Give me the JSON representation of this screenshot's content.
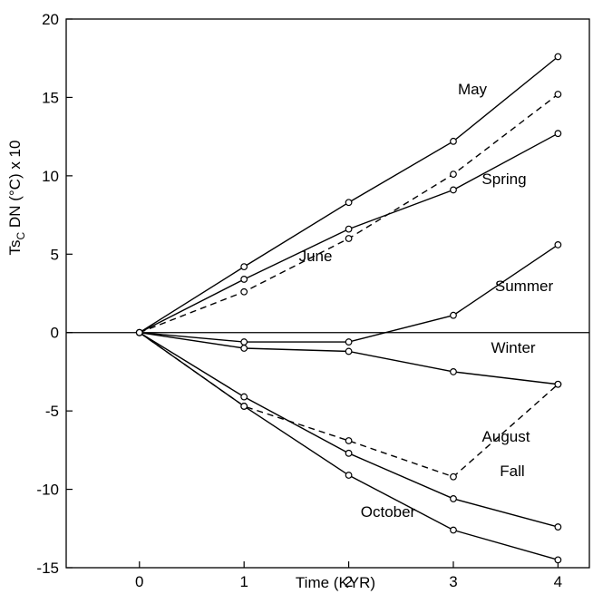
{
  "chart_data": {
    "type": "line",
    "title": "",
    "xlabel": "Time (KYR)",
    "ylabel_parts": {
      "base": "Ts",
      "sub": "C",
      "rest": " DN (°C) x 10"
    },
    "xlim": [
      -0.7,
      4.3
    ],
    "ylim": [
      -15,
      20
    ],
    "xticks": [
      0,
      1,
      2,
      3,
      4
    ],
    "yticks": [
      -15,
      -10,
      -5,
      0,
      5,
      10,
      15,
      20
    ],
    "zero_line": true,
    "grid": false,
    "legend": "none",
    "x": [
      0,
      1,
      2,
      3,
      4
    ],
    "series": [
      {
        "name": "May",
        "style": "solid",
        "values": [
          0,
          4.2,
          8.3,
          12.2,
          17.6
        ]
      },
      {
        "name": "June",
        "style": "dashed",
        "values": [
          0,
          2.6,
          6.0,
          10.1,
          15.2
        ]
      },
      {
        "name": "Spring",
        "style": "solid",
        "values": [
          0,
          3.4,
          6.6,
          9.1,
          12.7
        ]
      },
      {
        "name": "Summer",
        "style": "solid",
        "values": [
          0,
          -0.6,
          -0.6,
          1.1,
          5.6
        ]
      },
      {
        "name": "Winter",
        "style": "solid",
        "values": [
          0,
          -1.0,
          -1.2,
          -2.5,
          -3.3
        ]
      },
      {
        "name": "August",
        "style": "dashed",
        "values": [
          0,
          -4.7,
          -6.9,
          -9.2,
          -3.3
        ]
      },
      {
        "name": "Fall",
        "style": "solid",
        "values": [
          0,
          -4.1,
          -7.7,
          -10.6,
          -12.4
        ]
      },
      {
        "name": "October",
        "style": "solid",
        "values": [
          0,
          -4.7,
          -9.1,
          -12.6,
          -14.5
        ]
      }
    ]
  }
}
